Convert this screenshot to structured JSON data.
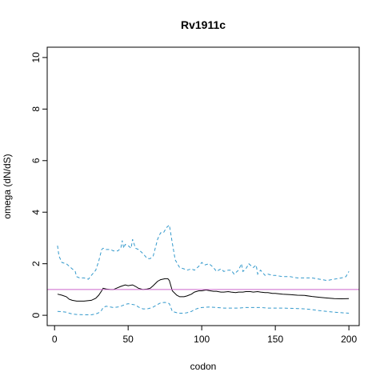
{
  "chart_data": {
    "type": "line",
    "title": "Rv1911c",
    "xlabel": "codon",
    "ylabel": "omega (dN/dS)",
    "xlim": [
      -5,
      207
    ],
    "ylim": [
      -0.4,
      10.4
    ],
    "xticks": [
      0,
      50,
      100,
      150,
      200
    ],
    "yticks": [
      0,
      2,
      4,
      6,
      8,
      10
    ],
    "reference_line": {
      "y": 1,
      "color": "#cc66cc"
    },
    "series": [
      {
        "style": "solid",
        "color": "#000000",
        "x": [
          2,
          5,
          8,
          10,
          12,
          15,
          20,
          25,
          28,
          30,
          32,
          33,
          35,
          38,
          40,
          42,
          45,
          48,
          50,
          53,
          55,
          57,
          60,
          63,
          65,
          67,
          70,
          72,
          75,
          77,
          78,
          80,
          83,
          85,
          88,
          90,
          93,
          95,
          98,
          100,
          103,
          105,
          108,
          110,
          113,
          115,
          118,
          120,
          123,
          125,
          128,
          130,
          133,
          135,
          138,
          140,
          143,
          145,
          148,
          150,
          155,
          160,
          165,
          170,
          175,
          180,
          185,
          190,
          195,
          200
        ],
        "y": [
          0.82,
          0.78,
          0.72,
          0.62,
          0.58,
          0.55,
          0.55,
          0.58,
          0.66,
          0.78,
          0.95,
          1.05,
          1.02,
          1.0,
          1.0,
          1.05,
          1.12,
          1.18,
          1.15,
          1.18,
          1.12,
          1.05,
          1.0,
          1.02,
          1.05,
          1.15,
          1.32,
          1.38,
          1.42,
          1.42,
          1.35,
          0.95,
          0.78,
          0.72,
          0.72,
          0.75,
          0.82,
          0.9,
          0.95,
          0.95,
          0.98,
          0.96,
          0.93,
          0.93,
          0.9,
          0.9,
          0.92,
          0.9,
          0.88,
          0.9,
          0.9,
          0.92,
          0.92,
          0.9,
          0.92,
          0.9,
          0.88,
          0.88,
          0.85,
          0.85,
          0.82,
          0.8,
          0.78,
          0.77,
          0.73,
          0.7,
          0.67,
          0.65,
          0.64,
          0.65
        ]
      },
      {
        "style": "dashed",
        "color": "#3399cc",
        "x": [
          2,
          3,
          5,
          8,
          10,
          12,
          14,
          15,
          17,
          20,
          23,
          25,
          28,
          30,
          32,
          33,
          35,
          38,
          40,
          43,
          45,
          46,
          47,
          48,
          50,
          52,
          53,
          55,
          57,
          60,
          63,
          65,
          67,
          70,
          72,
          74,
          76,
          78,
          80,
          82,
          85,
          88,
          90,
          93,
          95,
          98,
          100,
          102,
          105,
          108,
          110,
          113,
          115,
          118,
          120,
          122,
          125,
          127,
          128,
          130,
          132,
          135,
          137,
          138,
          140,
          143,
          145,
          148,
          150,
          155,
          160,
          165,
          170,
          175,
          180,
          185,
          190,
          195,
          198,
          200
        ],
        "y": [
          2.7,
          2.3,
          2.05,
          2.0,
          1.9,
          1.8,
          1.7,
          1.5,
          1.45,
          1.45,
          1.4,
          1.55,
          1.75,
          2.1,
          2.55,
          2.6,
          2.55,
          2.55,
          2.5,
          2.5,
          2.6,
          2.9,
          2.6,
          2.75,
          2.7,
          2.6,
          2.95,
          2.6,
          2.55,
          2.4,
          2.2,
          2.2,
          2.3,
          2.95,
          3.2,
          3.2,
          3.4,
          3.5,
          2.8,
          2.15,
          1.85,
          1.8,
          1.75,
          1.8,
          1.75,
          1.9,
          2.05,
          1.95,
          2.0,
          1.85,
          1.7,
          1.8,
          1.7,
          1.75,
          1.75,
          1.6,
          1.75,
          2.0,
          1.7,
          1.8,
          2.0,
          1.85,
          1.95,
          1.6,
          1.75,
          1.55,
          1.6,
          1.55,
          1.55,
          1.5,
          1.5,
          1.45,
          1.45,
          1.45,
          1.4,
          1.35,
          1.4,
          1.45,
          1.5,
          1.7
        ]
      },
      {
        "style": "dashed",
        "color": "#3399cc",
        "x": [
          2,
          5,
          8,
          10,
          12,
          15,
          20,
          25,
          28,
          30,
          32,
          33,
          35,
          38,
          40,
          43,
          45,
          48,
          50,
          53,
          55,
          57,
          60,
          63,
          65,
          67,
          70,
          72,
          75,
          77,
          78,
          80,
          83,
          85,
          88,
          90,
          93,
          95,
          98,
          100,
          105,
          110,
          115,
          120,
          125,
          130,
          135,
          140,
          145,
          150,
          155,
          160,
          165,
          170,
          175,
          180,
          185,
          190,
          195,
          200
        ],
        "y": [
          0.15,
          0.14,
          0.12,
          0.08,
          0.05,
          0.03,
          0.02,
          0.02,
          0.05,
          0.1,
          0.2,
          0.3,
          0.35,
          0.32,
          0.3,
          0.32,
          0.35,
          0.42,
          0.45,
          0.42,
          0.4,
          0.32,
          0.25,
          0.25,
          0.28,
          0.32,
          0.42,
          0.48,
          0.5,
          0.48,
          0.45,
          0.15,
          0.1,
          0.08,
          0.08,
          0.1,
          0.15,
          0.22,
          0.28,
          0.3,
          0.32,
          0.3,
          0.28,
          0.28,
          0.28,
          0.3,
          0.3,
          0.3,
          0.28,
          0.28,
          0.28,
          0.27,
          0.26,
          0.25,
          0.22,
          0.18,
          0.15,
          0.12,
          0.1,
          0.08
        ]
      }
    ]
  }
}
